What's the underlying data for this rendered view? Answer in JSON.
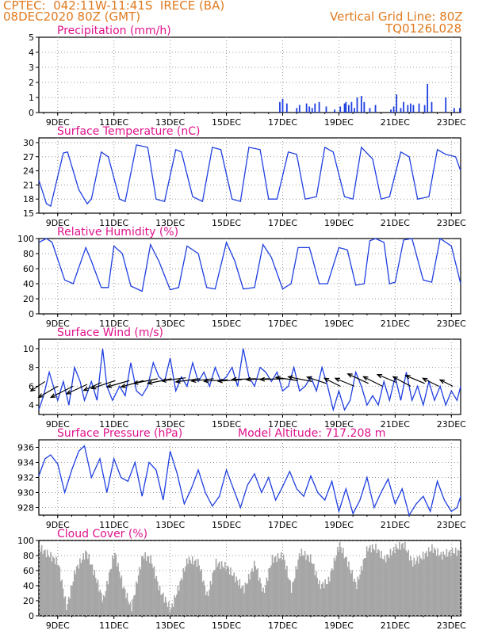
{
  "header": {
    "line1_left": "CPTEC:  042:11W-11:41S  IRECE (BA)",
    "line2_left": "08DEC2020 80Z (GMT)",
    "line2_right": "Vertical Grid Line: 80Z",
    "line3_right": "TQ0126L028"
  },
  "colors": {
    "header": "#e07a1f",
    "title": "#e0138c",
    "line": "#1f3fe0",
    "cloud": "#a6a6a6",
    "axis": "#000000",
    "grid": "#9a9a9a"
  },
  "x_ticks": [
    "9DEC",
    "11DEC",
    "13DEC",
    "15DEC",
    "17DEC",
    "19DEC",
    "21DEC",
    "23DEC"
  ],
  "x_domain_days": [
    8.33,
    23.33
  ],
  "chart_data": [
    {
      "id": "precip",
      "type": "bar",
      "title": "Precipitation (mm/h)",
      "ylim": [
        0,
        5
      ],
      "yticks": [
        "0",
        "1",
        "2",
        "3",
        "4",
        "5"
      ],
      "x": [
        16.9,
        17.0,
        17.15,
        17.5,
        17.6,
        17.85,
        17.95,
        18.05,
        18.15,
        18.3,
        18.55,
        18.85,
        19.05,
        19.2,
        19.25,
        19.35,
        19.45,
        19.55,
        19.65,
        19.8,
        19.9,
        20.1,
        20.3,
        20.85,
        20.95,
        21.05,
        21.2,
        21.3,
        21.45,
        21.55,
        21.65,
        21.85,
        22.05,
        22.15,
        22.3,
        22.8,
        23.1,
        23.3
      ],
      "values": [
        0.7,
        0.9,
        0.6,
        0.3,
        0.5,
        0.6,
        0.4,
        0.3,
        0.6,
        0.7,
        0.4,
        0.2,
        0.4,
        0.6,
        0.7,
        0.5,
        0.7,
        0.3,
        1.0,
        1.1,
        0.7,
        0.3,
        0.5,
        0.2,
        0.4,
        1.2,
        0.3,
        0.7,
        0.5,
        0.6,
        0.5,
        0.6,
        0.5,
        1.9,
        0.7,
        1.0,
        0.3,
        0.3
      ]
    },
    {
      "id": "temp",
      "type": "line",
      "title": "Surface Temperature (nC)",
      "ylim": [
        15,
        31
      ],
      "yticks": [
        "15",
        "18",
        "21",
        "24",
        "27",
        "30"
      ],
      "x": [
        8.33,
        8.6,
        8.75,
        9.2,
        9.35,
        9.75,
        10.05,
        10.2,
        10.55,
        10.8,
        11.2,
        11.4,
        11.8,
        12.2,
        12.5,
        12.8,
        13.2,
        13.4,
        13.8,
        14.15,
        14.5,
        14.8,
        15.2,
        15.5,
        15.8,
        16.2,
        16.5,
        16.8,
        17.2,
        17.5,
        17.8,
        18.2,
        18.5,
        18.8,
        19.2,
        19.5,
        19.8,
        20.2,
        20.5,
        20.8,
        21.2,
        21.5,
        21.8,
        22.2,
        22.5,
        22.8,
        23.15,
        23.33
      ],
      "y": [
        22.0,
        17.0,
        16.5,
        27.8,
        28.0,
        20.0,
        17.0,
        18.0,
        28.0,
        27.0,
        18.0,
        17.5,
        29.5,
        29.0,
        18.0,
        17.5,
        28.5,
        28.0,
        18.5,
        17.5,
        29.0,
        28.5,
        18.0,
        17.5,
        29.0,
        28.5,
        18.0,
        18.0,
        28.0,
        27.5,
        18.0,
        18.5,
        29.0,
        28.0,
        18.5,
        18.0,
        29.0,
        26.5,
        18.0,
        18.5,
        28.0,
        27.0,
        18.0,
        18.5,
        28.5,
        27.5,
        27.0,
        24.0
      ]
    },
    {
      "id": "rh",
      "type": "line",
      "title": "Relative Humidity (%)",
      "ylim": [
        0,
        100
      ],
      "yticks": [
        "0",
        "20",
        "40",
        "60",
        "80",
        "100"
      ],
      "x": [
        8.33,
        8.6,
        8.8,
        9.25,
        9.55,
        10.0,
        10.2,
        10.55,
        10.8,
        11.0,
        11.3,
        11.6,
        12.0,
        12.3,
        12.6,
        13.0,
        13.3,
        13.6,
        14.0,
        14.3,
        14.6,
        15.0,
        15.3,
        15.6,
        16.0,
        16.3,
        16.6,
        17.0,
        17.3,
        17.55,
        17.95,
        18.05,
        18.3,
        18.6,
        19.0,
        19.3,
        19.6,
        19.9,
        20.1,
        20.3,
        20.6,
        20.8,
        21.0,
        21.3,
        21.6,
        22.0,
        22.3,
        22.6,
        23.0,
        23.33
      ],
      "y": [
        95,
        100,
        95,
        45,
        40,
        88,
        70,
        35,
        35,
        90,
        80,
        37,
        30,
        92,
        70,
        32,
        35,
        90,
        80,
        35,
        33,
        95,
        70,
        33,
        35,
        92,
        75,
        33,
        40,
        88,
        88,
        75,
        40,
        40,
        88,
        85,
        38,
        40,
        97,
        100,
        95,
        40,
        42,
        98,
        100,
        45,
        42,
        100,
        90,
        40
      ]
    },
    {
      "id": "wind",
      "type": "line",
      "title": "Surface Wind (m/s)",
      "ylim": [
        3,
        11
      ],
      "yticks": [
        "4",
        "6",
        "8",
        "10"
      ],
      "x": [
        8.33,
        8.5,
        8.7,
        8.85,
        9.0,
        9.2,
        9.4,
        9.6,
        9.8,
        9.95,
        10.2,
        10.4,
        10.6,
        10.75,
        10.95,
        11.2,
        11.4,
        11.6,
        11.8,
        12.0,
        12.2,
        12.4,
        12.6,
        12.8,
        13.0,
        13.2,
        13.4,
        13.6,
        13.8,
        14.0,
        14.2,
        14.4,
        14.6,
        14.8,
        15.0,
        15.2,
        15.4,
        15.6,
        15.8,
        16.0,
        16.2,
        16.4,
        16.6,
        16.8,
        17.0,
        17.2,
        17.4,
        17.6,
        17.8,
        18.0,
        18.2,
        18.4,
        18.6,
        18.8,
        19.0,
        19.2,
        19.4,
        19.6,
        19.8,
        20.0,
        20.2,
        20.4,
        20.6,
        20.8,
        21.0,
        21.2,
        21.4,
        21.6,
        21.8,
        22.0,
        22.2,
        22.4,
        22.6,
        22.8,
        23.0,
        23.2,
        23.33
      ],
      "y": [
        3.5,
        5.0,
        7.5,
        6.0,
        4.5,
        6.5,
        4.0,
        8.0,
        6.5,
        4.5,
        6.5,
        4.5,
        10.0,
        6.0,
        4.5,
        6.0,
        5.0,
        8.5,
        5.5,
        5.0,
        6.0,
        8.5,
        7.0,
        6.5,
        9.0,
        5.5,
        7.0,
        6.0,
        8.5,
        6.5,
        7.5,
        6.0,
        8.0,
        6.5,
        7.0,
        8.0,
        6.0,
        10.0,
        7.0,
        6.0,
        8.0,
        7.5,
        6.5,
        7.5,
        5.5,
        6.0,
        8.0,
        5.5,
        6.0,
        7.0,
        5.5,
        8.0,
        6.0,
        3.5,
        5.5,
        3.5,
        4.5,
        7.5,
        6.0,
        4.0,
        5.0,
        4.0,
        6.5,
        4.5,
        7.0,
        4.5,
        7.5,
        4.5,
        6.0,
        4.0,
        6.5,
        4.5,
        6.0,
        4.0,
        5.5,
        4.5,
        6.0
      ],
      "barbs": [
        {
          "day": 8.55,
          "speed": 6.5,
          "dx": -18,
          "dy": -12
        },
        {
          "day": 9.0,
          "speed": 6.0,
          "dx": -24,
          "dy": -14
        },
        {
          "day": 9.55,
          "speed": 6.0,
          "dx": -28,
          "dy": -14
        },
        {
          "day": 10.05,
          "speed": 6.2,
          "dx": -26,
          "dy": -12
        },
        {
          "day": 10.55,
          "speed": 6.4,
          "dx": -22,
          "dy": -10
        },
        {
          "day": 11.05,
          "speed": 6.6,
          "dx": -30,
          "dy": -10
        },
        {
          "day": 11.55,
          "speed": 6.6,
          "dx": -28,
          "dy": -8
        },
        {
          "day": 12.05,
          "speed": 6.6,
          "dx": -28,
          "dy": -8
        },
        {
          "day": 12.55,
          "speed": 6.8,
          "dx": -30,
          "dy": -6
        },
        {
          "day": 13.05,
          "speed": 6.8,
          "dx": -30,
          "dy": -6
        },
        {
          "day": 13.55,
          "speed": 6.9,
          "dx": -30,
          "dy": -4
        },
        {
          "day": 14.05,
          "speed": 6.8,
          "dx": -30,
          "dy": -4
        },
        {
          "day": 14.55,
          "speed": 6.8,
          "dx": -28,
          "dy": -3
        },
        {
          "day": 15.05,
          "speed": 6.7,
          "dx": -30,
          "dy": -2
        },
        {
          "day": 15.55,
          "speed": 6.7,
          "dx": -30,
          "dy": -2
        },
        {
          "day": 16.05,
          "speed": 6.8,
          "dx": -30,
          "dy": -1
        },
        {
          "day": 16.55,
          "speed": 6.8,
          "dx": -30,
          "dy": -1
        },
        {
          "day": 17.05,
          "speed": 6.8,
          "dx": -30,
          "dy": -1
        },
        {
          "day": 17.55,
          "speed": 6.6,
          "dx": -28,
          "dy": 4
        },
        {
          "day": 18.05,
          "speed": 6.5,
          "dx": -30,
          "dy": 6
        },
        {
          "day": 18.55,
          "speed": 6.3,
          "dx": -24,
          "dy": 8
        },
        {
          "day": 19.05,
          "speed": 6.0,
          "dx": -20,
          "dy": 10
        },
        {
          "day": 19.55,
          "speed": 6.0,
          "dx": -24,
          "dy": 10
        },
        {
          "day": 20.05,
          "speed": 6.3,
          "dx": -26,
          "dy": 12
        },
        {
          "day": 20.55,
          "speed": 6.0,
          "dx": -24,
          "dy": 12
        },
        {
          "day": 21.05,
          "speed": 6.4,
          "dx": -24,
          "dy": 10
        },
        {
          "day": 21.55,
          "speed": 6.0,
          "dx": -22,
          "dy": 12
        },
        {
          "day": 22.05,
          "speed": 6.3,
          "dx": -24,
          "dy": 10
        },
        {
          "day": 22.55,
          "speed": 6.0,
          "dx": -20,
          "dy": 10
        },
        {
          "day": 23.05,
          "speed": 6.0,
          "dx": -16,
          "dy": 8
        }
      ]
    },
    {
      "id": "pres",
      "type": "line",
      "title": "Surface Pressure (hPa)",
      "annotation": "Model Altitude: 717.208 m",
      "ylim": [
        927,
        937
      ],
      "yticks": [
        "928",
        "930",
        "932",
        "934",
        "936"
      ],
      "x": [
        8.33,
        8.55,
        8.75,
        9.0,
        9.25,
        9.5,
        9.75,
        9.95,
        10.2,
        10.5,
        10.75,
        11.0,
        11.25,
        11.5,
        11.75,
        12.0,
        12.25,
        12.5,
        12.75,
        13.0,
        13.25,
        13.5,
        13.75,
        14.0,
        14.25,
        14.5,
        14.75,
        15.0,
        15.25,
        15.5,
        15.75,
        16.0,
        16.25,
        16.5,
        16.75,
        17.0,
        17.25,
        17.5,
        17.75,
        18.0,
        18.25,
        18.5,
        18.75,
        19.0,
        19.25,
        19.5,
        19.75,
        20.0,
        20.25,
        20.5,
        20.75,
        21.0,
        21.25,
        21.5,
        21.75,
        22.0,
        22.25,
        22.5,
        22.75,
        23.0,
        23.2,
        23.33
      ],
      "y": [
        932.2,
        934.5,
        935.0,
        933.8,
        930.0,
        933.0,
        935.5,
        936.2,
        932.0,
        934.5,
        930.0,
        934.5,
        932.0,
        931.5,
        934.0,
        929.5,
        934.0,
        933.0,
        929.0,
        935.5,
        932.5,
        928.5,
        930.5,
        933.0,
        930.0,
        928.2,
        929.5,
        933.0,
        930.5,
        928.0,
        931.0,
        932.5,
        930.0,
        932.0,
        929.0,
        930.8,
        932.8,
        930.5,
        929.5,
        932.2,
        930.0,
        929.0,
        931.5,
        927.5,
        930.5,
        927.2,
        929.0,
        932.0,
        928.0,
        930.0,
        931.8,
        928.5,
        930.5,
        927.0,
        928.5,
        929.5,
        927.5,
        931.5,
        929.0,
        927.5,
        928.0,
        929.5
      ]
    },
    {
      "id": "cloud",
      "type": "area",
      "title": "Cloud Cover (%)",
      "ylim": [
        0,
        100
      ],
      "yticks": [
        "0",
        "20",
        "40",
        "60",
        "80",
        "100"
      ],
      "x": [
        8.33,
        8.7,
        9.0,
        9.3,
        9.6,
        10.0,
        10.3,
        10.6,
        11.0,
        11.3,
        11.6,
        12.0,
        12.3,
        12.6,
        13.0,
        13.3,
        13.6,
        14.0,
        14.3,
        14.6,
        15.0,
        15.3,
        15.6,
        16.0,
        16.3,
        16.6,
        17.0,
        17.3,
        17.6,
        18.0,
        18.3,
        18.6,
        19.0,
        19.3,
        19.6,
        20.0,
        20.3,
        20.6,
        21.0,
        21.3,
        21.6,
        22.0,
        22.3,
        22.6,
        23.0,
        23.33
      ],
      "y": [
        90,
        80,
        70,
        10,
        60,
        85,
        55,
        20,
        85,
        40,
        10,
        80,
        75,
        35,
        8,
        40,
        75,
        70,
        25,
        70,
        65,
        50,
        35,
        70,
        30,
        75,
        80,
        35,
        85,
        75,
        40,
        45,
        95,
        70,
        40,
        90,
        90,
        75,
        90,
        95,
        70,
        80,
        90,
        80,
        85,
        85
      ]
    }
  ]
}
